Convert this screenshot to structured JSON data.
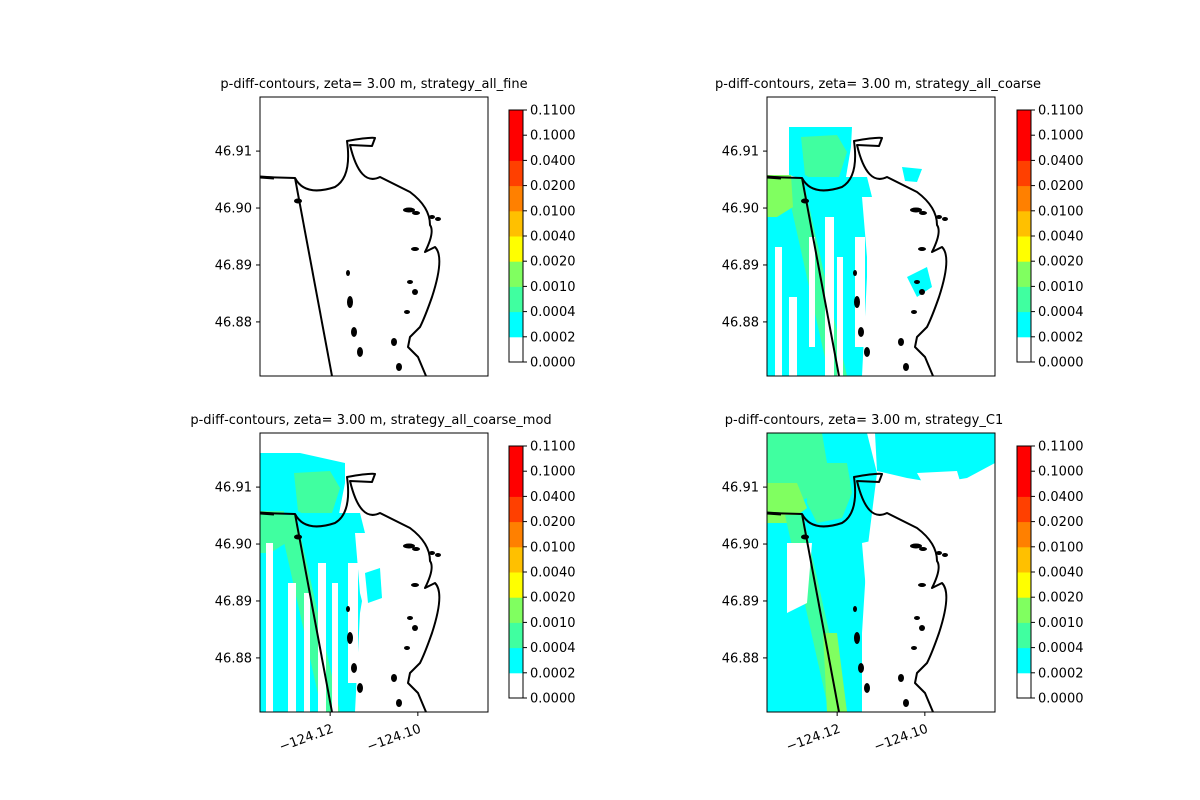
{
  "colors": {
    "levels": [
      "#ffffff",
      "#00ffff",
      "#40ffa0",
      "#80ff60",
      "#ffff00",
      "#ffc000",
      "#ff8000",
      "#ff4000",
      "#ff0000"
    ],
    "shoreline": "#000000"
  },
  "colorbar": {
    "ticks": [
      "0.0000",
      "0.0002",
      "0.0004",
      "0.0010",
      "0.0020",
      "0.0040",
      "0.0100",
      "0.0200",
      "0.0400",
      "0.1000",
      "0.1100"
    ]
  },
  "chart_data": [
    {
      "type": "heatmap",
      "title": "p-diff-contours, zeta= 3.00 m, strategy_all_fine",
      "xlabel": "",
      "ylabel": "",
      "xlim": [
        -124.136,
        -124.084
      ],
      "ylim": [
        46.8705,
        46.9195
      ],
      "yticks": [
        {
          "v": 46.88,
          "label": "46.88"
        },
        {
          "v": 46.89,
          "label": "46.89"
        },
        {
          "v": 46.9,
          "label": "46.90"
        },
        {
          "v": 46.91,
          "label": "46.91"
        }
      ],
      "xticks": [],
      "contour_levels": [
        0.0,
        0.0002,
        0.0004,
        0.001,
        0.002,
        0.004,
        0.01,
        0.02,
        0.04,
        0.1,
        0.11
      ],
      "coverage": "none (all below 0.0002)"
    },
    {
      "type": "heatmap",
      "title": "p-diff-contours, zeta= 3.00 m, strategy_all_coarse",
      "xlabel": "",
      "ylabel": "",
      "xlim": [
        -124.136,
        -124.084
      ],
      "ylim": [
        46.8705,
        46.9195
      ],
      "yticks": [
        {
          "v": 46.88,
          "label": "46.88"
        },
        {
          "v": 46.89,
          "label": "46.89"
        },
        {
          "v": 46.9,
          "label": "46.90"
        },
        {
          "v": 46.91,
          "label": "46.91"
        }
      ],
      "xticks": [],
      "contour_levels": [
        0.0,
        0.0002,
        0.0004,
        0.001,
        0.002,
        0.004,
        0.01,
        0.02,
        0.04,
        0.1,
        0.11
      ],
      "coverage": "patchy cyan/green west of shore, max about 0.002"
    },
    {
      "type": "heatmap",
      "title": "p-diff-contours, zeta= 3.00 m, strategy_all_coarse_mod",
      "xlabel": "",
      "ylabel": "",
      "xlim": [
        -124.136,
        -124.084
      ],
      "ylim": [
        46.8705,
        46.9195
      ],
      "yticks": [
        {
          "v": 46.88,
          "label": "46.88"
        },
        {
          "v": 46.89,
          "label": "46.89"
        },
        {
          "v": 46.9,
          "label": "46.90"
        },
        {
          "v": 46.91,
          "label": "46.91"
        }
      ],
      "xticks": [
        {
          "v": -124.12,
          "label": "−124.12"
        },
        {
          "v": -124.1,
          "label": "−124.10"
        }
      ],
      "contour_levels": [
        0.0,
        0.0002,
        0.0004,
        0.001,
        0.002,
        0.004,
        0.01,
        0.02,
        0.04,
        0.1,
        0.11
      ],
      "coverage": "patchy cyan/green west of shore, max about 0.002"
    },
    {
      "type": "heatmap",
      "title": "p-diff-contours, zeta= 3.00 m, strategy_C1",
      "xlabel": "",
      "ylabel": "",
      "xlim": [
        -124.136,
        -124.084
      ],
      "ylim": [
        46.8705,
        46.9195
      ],
      "yticks": [
        {
          "v": 46.88,
          "label": "46.88"
        },
        {
          "v": 46.89,
          "label": "46.89"
        },
        {
          "v": 46.9,
          "label": "46.90"
        },
        {
          "v": 46.91,
          "label": "46.91"
        }
      ],
      "xticks": [
        {
          "v": -124.12,
          "label": "−124.12"
        },
        {
          "v": -124.1,
          "label": "−124.10"
        }
      ],
      "contour_levels": [
        0.0,
        0.0002,
        0.0004,
        0.001,
        0.002,
        0.004,
        0.01,
        0.02,
        0.04,
        0.1,
        0.11
      ],
      "coverage": "broad cyan/green coverage incl. bay, max about 0.002"
    }
  ]
}
